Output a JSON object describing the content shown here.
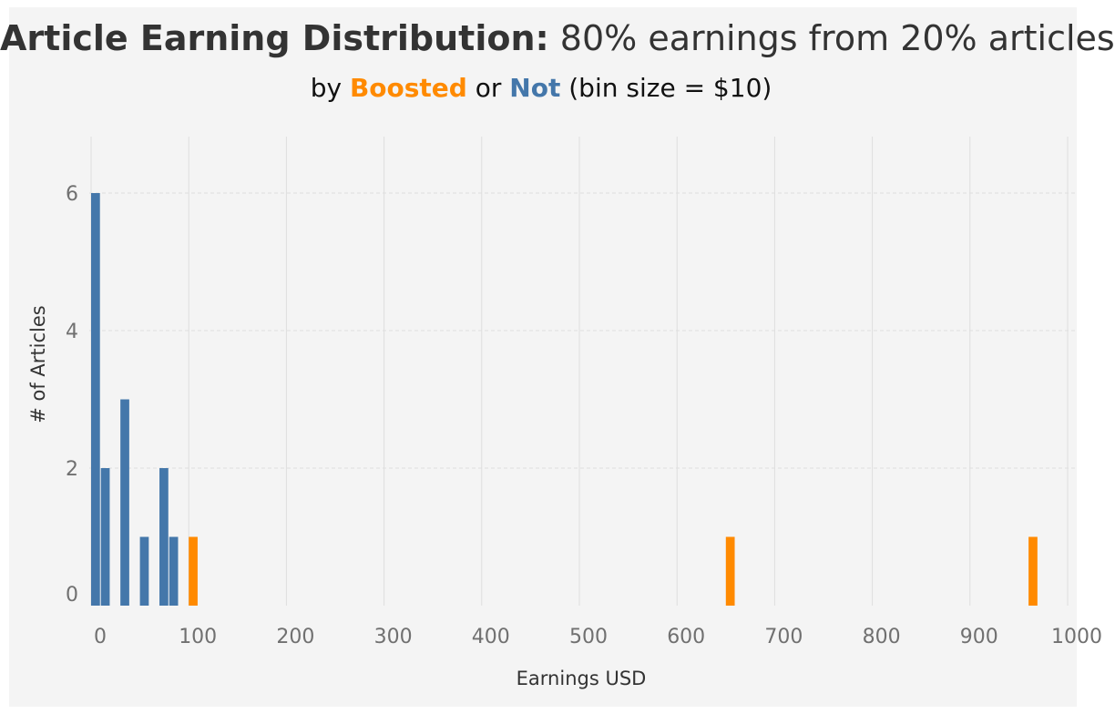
{
  "header": {
    "title_bold": "Article Earning Distribution:",
    "title_rest": " 80% earnings from 20% articles",
    "subtitle_by": "by ",
    "subtitle_boosted": "Boosted",
    "subtitle_or": " or ",
    "subtitle_not": "Not",
    "subtitle_tail": " (bin size = $10)"
  },
  "colors": {
    "boosted": "#ff8a00",
    "not": "#4477aa",
    "grid": "#dedede"
  },
  "chart_data": {
    "type": "bar",
    "xlabel": "Earnings USD",
    "ylabel": "# of Articles",
    "xlim": [
      -10,
      1010
    ],
    "ylim": [
      0,
      6.5
    ],
    "x_ticks": [
      0,
      100,
      200,
      300,
      400,
      500,
      600,
      700,
      800,
      900,
      1000
    ],
    "y_ticks": [
      0,
      2,
      4,
      6
    ],
    "bin_size": 10,
    "series": [
      {
        "name": "Not",
        "color": "#4477aa",
        "bins": [
          {
            "x": 0,
            "y": 6
          },
          {
            "x": 10,
            "y": 2
          },
          {
            "x": 30,
            "y": 3
          },
          {
            "x": 50,
            "y": 1
          },
          {
            "x": 70,
            "y": 2
          },
          {
            "x": 80,
            "y": 1
          }
        ]
      },
      {
        "name": "Boosted",
        "color": "#ff8a00",
        "bins": [
          {
            "x": 100,
            "y": 1
          },
          {
            "x": 650,
            "y": 1
          },
          {
            "x": 960,
            "y": 1
          }
        ]
      }
    ]
  }
}
